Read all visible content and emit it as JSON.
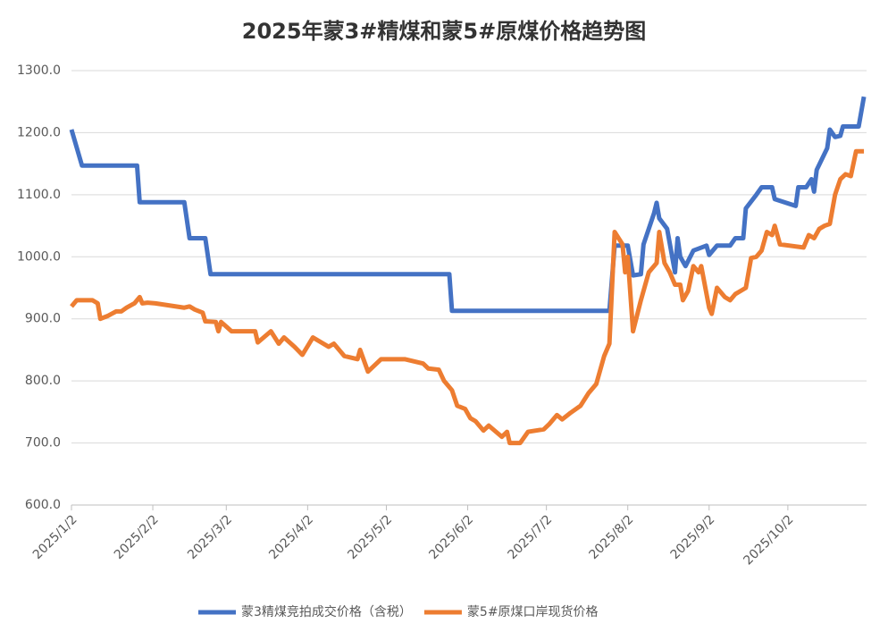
{
  "chart_data": {
    "type": "line",
    "title": "2025年蒙3#精煤和蒙5#原煤价格趋势图",
    "xlim": [
      "2025/1/2",
      "2025/11/1"
    ],
    "xticks": [
      "2025/1/2",
      "2025/2/2",
      "2025/3/2",
      "2025/4/2",
      "2025/5/2",
      "2025/6/2",
      "2025/7/2",
      "2025/8/2",
      "2025/9/2",
      "2025/10/2"
    ],
    "ylim": [
      600,
      1300
    ],
    "yticks": [
      {
        "value": 600,
        "label": "600.0"
      },
      {
        "value": 700,
        "label": "700.0"
      },
      {
        "value": 800,
        "label": "800.0"
      },
      {
        "value": 900,
        "label": "900.0"
      },
      {
        "value": 1000,
        "label": "1000.0"
      },
      {
        "value": 1100,
        "label": "1100.0"
      },
      {
        "value": 1200,
        "label": "1200.0"
      },
      {
        "value": 1300,
        "label": "1300.0"
      }
    ],
    "grid": true,
    "legend": "bottom",
    "series": [
      {
        "name": "蒙3精煤竞拍成交价格（含税）",
        "color": "#4472c4",
        "x": [
          "2025/1/2",
          "2025/1/6",
          "2025/1/27",
          "2025/1/28",
          "2025/2/14",
          "2025/2/16",
          "2025/2/22",
          "2025/2/24",
          "2025/5/26",
          "2025/5/27",
          "2025/7/26",
          "2025/7/28",
          "2025/8/2",
          "2025/8/4",
          "2025/8/7",
          "2025/8/8",
          "2025/8/12",
          "2025/8/13",
          "2025/8/14",
          "2025/8/17",
          "2025/8/20",
          "2025/8/21",
          "2025/8/22",
          "2025/8/24",
          "2025/8/27",
          "2025/9/1",
          "2025/9/2",
          "2025/9/5",
          "2025/9/10",
          "2025/9/12",
          "2025/9/15",
          "2025/9/16",
          "2025/9/20",
          "2025/9/22",
          "2025/9/26",
          "2025/9/27",
          "2025/10/5",
          "2025/10/6",
          "2025/10/9",
          "2025/10/11",
          "2025/10/12",
          "2025/10/13",
          "2025/10/17",
          "2025/10/18",
          "2025/10/20",
          "2025/10/22",
          "2025/10/23",
          "2025/10/29",
          "2025/10/31"
        ],
        "values": [
          1205,
          1147,
          1147,
          1088,
          1088,
          1030,
          1030,
          972,
          972,
          913,
          913,
          1018,
          1018,
          970,
          972,
          1020,
          1070,
          1087,
          1062,
          1045,
          975,
          1030,
          1000,
          985,
          1010,
          1018,
          1003,
          1018,
          1018,
          1030,
          1030,
          1078,
          1100,
          1112,
          1112,
          1093,
          1082,
          1112,
          1112,
          1125,
          1105,
          1140,
          1175,
          1205,
          1193,
          1195,
          1210,
          1210,
          1258
        ]
      },
      {
        "name": "蒙5#原煤口岸现货价格",
        "color": "#ed7d31",
        "x": [
          "2025/1/2",
          "2025/1/4",
          "2025/1/10",
          "2025/1/12",
          "2025/1/13",
          "2025/1/16",
          "2025/1/19",
          "2025/1/21",
          "2025/1/23",
          "2025/1/26",
          "2025/1/28",
          "2025/1/29",
          "2025/1/31",
          "2025/2/3",
          "2025/2/14",
          "2025/2/16",
          "2025/2/18",
          "2025/2/21",
          "2025/2/22",
          "2025/2/26",
          "2025/2/27",
          "2025/2/28",
          "2025/3/4",
          "2025/3/13",
          "2025/3/14",
          "2025/3/19",
          "2025/3/22",
          "2025/3/24",
          "2025/3/28",
          "2025/3/31",
          "2025/4/2",
          "2025/4/4",
          "2025/4/10",
          "2025/4/12",
          "2025/4/16",
          "2025/4/21",
          "2025/4/22",
          "2025/4/25",
          "2025/4/30",
          "2025/5/9",
          "2025/5/16",
          "2025/5/18",
          "2025/5/22",
          "2025/5/24",
          "2025/5/27",
          "2025/5/29",
          "2025/6/1",
          "2025/6/3",
          "2025/6/5",
          "2025/6/8",
          "2025/6/10",
          "2025/6/15",
          "2025/6/17",
          "2025/6/18",
          "2025/6/22",
          "2025/6/25",
          "2025/7/1",
          "2025/7/3",
          "2025/7/6",
          "2025/7/8",
          "2025/7/11",
          "2025/7/15",
          "2025/7/18",
          "2025/7/21",
          "2025/7/24",
          "2025/7/26",
          "2025/7/28",
          "2025/7/31",
          "2025/8/1",
          "2025/8/2",
          "2025/8/4",
          "2025/8/7",
          "2025/8/10",
          "2025/8/13",
          "2025/8/14",
          "2025/8/16",
          "2025/8/18",
          "2025/8/20",
          "2025/8/22",
          "2025/8/23",
          "2025/8/25",
          "2025/8/27",
          "2025/8/29",
          "2025/8/30",
          "2025/9/2",
          "2025/9/3",
          "2025/9/5",
          "2025/9/8",
          "2025/9/10",
          "2025/9/12",
          "2025/9/14",
          "2025/9/16",
          "2025/9/18",
          "2025/9/20",
          "2025/9/22",
          "2025/9/24",
          "2025/9/26",
          "2025/9/27",
          "2025/9/29",
          "2025/10/8",
          "2025/10/10",
          "2025/10/12",
          "2025/10/14",
          "2025/10/16",
          "2025/10/18",
          "2025/10/20",
          "2025/10/22",
          "2025/10/24",
          "2025/10/26",
          "2025/10/28",
          "2025/10/31"
        ],
        "values": [
          920,
          930,
          930,
          925,
          900,
          905,
          912,
          912,
          918,
          925,
          935,
          925,
          926,
          925,
          918,
          920,
          915,
          910,
          896,
          895,
          880,
          895,
          880,
          880,
          862,
          880,
          860,
          870,
          855,
          842,
          856,
          870,
          855,
          860,
          840,
          835,
          850,
          815,
          835,
          835,
          828,
          820,
          818,
          800,
          785,
          760,
          755,
          740,
          735,
          720,
          728,
          710,
          718,
          700,
          700,
          718,
          722,
          730,
          745,
          738,
          748,
          760,
          780,
          795,
          840,
          860,
          1040,
          1020,
          975,
          1000,
          880,
          930,
          975,
          990,
          1040,
          990,
          975,
          955,
          955,
          930,
          945,
          985,
          975,
          985,
          918,
          908,
          950,
          935,
          930,
          940,
          945,
          950,
          998,
          1000,
          1010,
          1040,
          1035,
          1050,
          1020,
          1015,
          1035,
          1030,
          1045,
          1050,
          1053,
          1100,
          1125,
          1133,
          1130,
          1170,
          1170
        ]
      }
    ]
  }
}
